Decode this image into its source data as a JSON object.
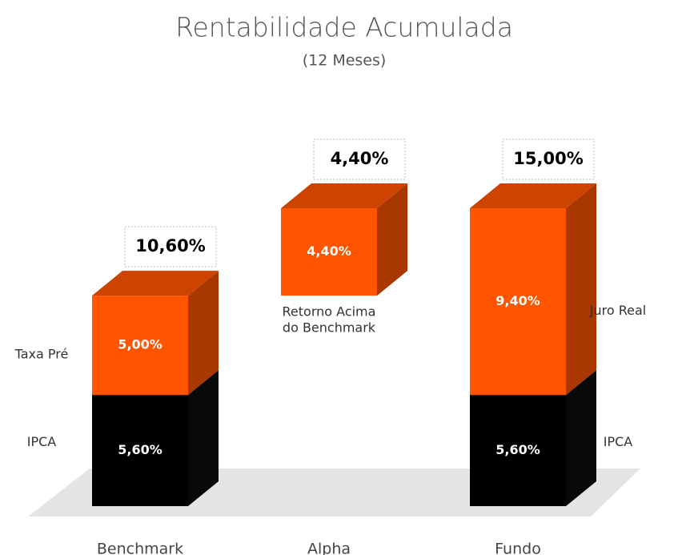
{
  "chart_data": {
    "type": "bar",
    "title": "Rentabilidade Acumulada",
    "subtitle": "(12 Meses)",
    "bars": [
      {
        "category": "Benchmark",
        "label_side": "left",
        "total": 10.6,
        "total_label": "10,60%",
        "segments": [
          {
            "name": "IPCA",
            "value": 5.6,
            "value_label": "5,60%",
            "color": "#000000"
          },
          {
            "name": "Taxa Pré",
            "value": 5.0,
            "value_label": "5,00%",
            "color": "#ff5500"
          }
        ]
      },
      {
        "category": "Alpha",
        "label_side": "below",
        "floating": true,
        "total": 4.4,
        "total_label": "4,40%",
        "segments": [
          {
            "name": [
              "Retorno Acima",
              "do Benchmark"
            ],
            "value": 4.4,
            "value_label": "4,40%",
            "color": "#ff5500"
          }
        ]
      },
      {
        "category": "Fundo",
        "label_side": "right",
        "total": 15,
        "total_label": "15,00%",
        "segments": [
          {
            "name": "IPCA",
            "value": 5.6,
            "value_label": "5,60%",
            "color": "#000000"
          },
          {
            "name": "Juro Real",
            "value": 9.4,
            "value_label": "9,40%",
            "color": "#ff5500"
          }
        ]
      }
    ]
  }
}
